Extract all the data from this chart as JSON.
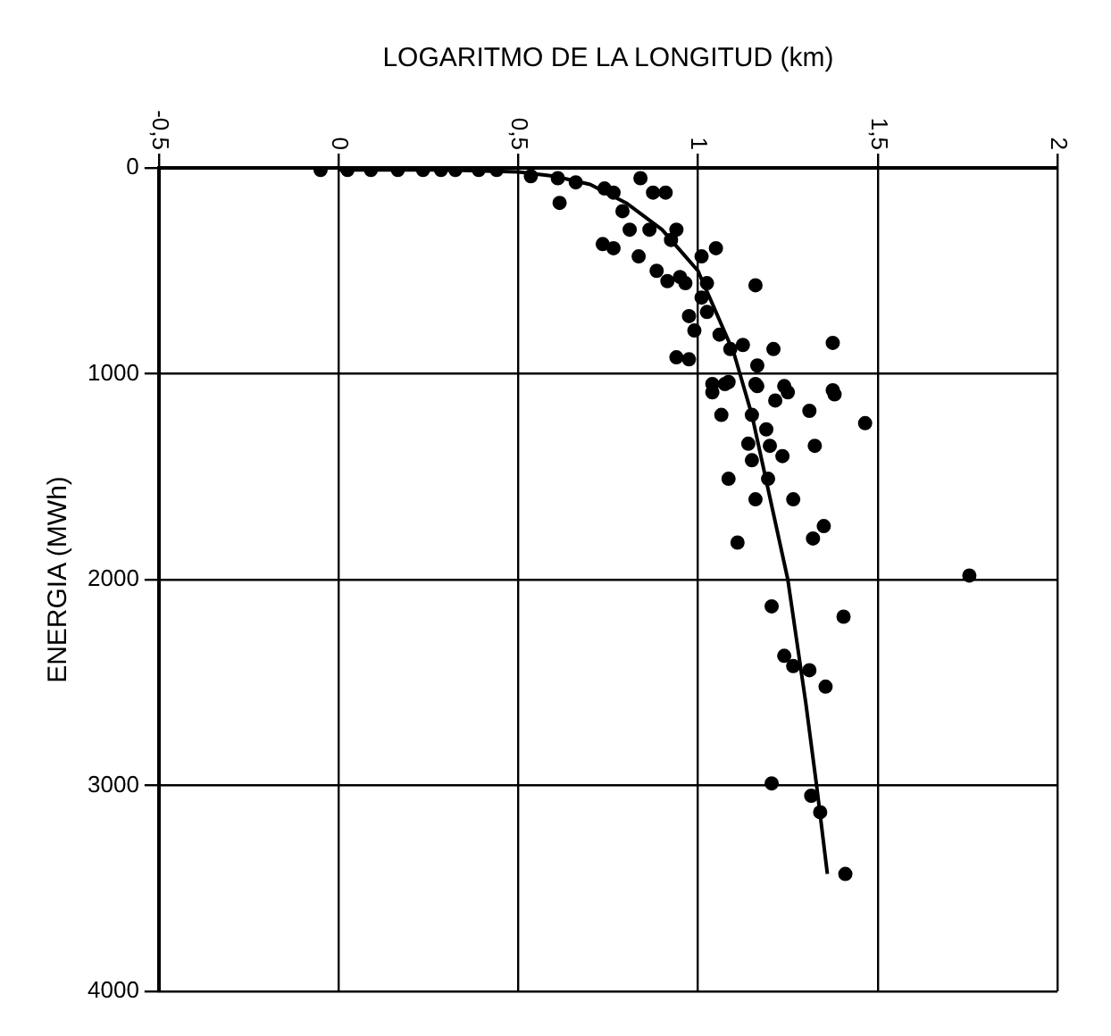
{
  "chart_data": {
    "type": "scatter",
    "xlabel": "LOGARITMO DE LA LONGITUD (km)",
    "ylabel": "ENERGIA (MWh)",
    "xlim": [
      -0.5,
      2
    ],
    "xticks": [
      {
        "value": -0.5,
        "label": "-0,5"
      },
      0,
      {
        "value": 0.5,
        "label": "0,5"
      },
      1,
      {
        "value": 1.5,
        "label": "1,5"
      },
      2
    ],
    "ylim": [
      4000,
      0
    ],
    "yticks": [
      0,
      1000,
      2000,
      3000,
      4000
    ],
    "grid": true,
    "legend": false,
    "marker": "circle",
    "series": [
      {
        "color": "#000000",
        "x": [
          -0.05,
          0.025,
          0.09,
          0.165,
          0.235,
          0.285,
          0.325,
          0.39,
          0.44,
          0.535,
          0.61,
          0.66,
          0.615,
          0.74,
          0.765,
          0.84,
          0.875,
          0.91,
          0.79,
          0.735,
          0.765,
          0.835,
          0.81,
          0.865,
          0.94,
          0.925,
          0.885,
          0.915,
          0.95,
          0.965,
          1.01,
          1.05,
          1.025,
          1.16,
          1.01,
          1.025,
          0.975,
          0.99,
          1.06,
          1.09,
          1.125,
          1.21,
          0.94,
          0.975,
          1.165,
          1.375,
          1.04,
          1.085,
          1.16,
          1.24,
          1.375,
          1.04,
          1.075,
          1.165,
          1.215,
          1.25,
          1.38,
          1.065,
          1.15,
          1.31,
          1.465,
          1.19,
          1.14,
          1.2,
          1.325,
          1.15,
          1.235,
          1.085,
          1.195,
          1.16,
          1.265,
          1.35,
          1.32,
          1.11,
          1.755,
          1.205,
          1.405,
          1.24,
          1.265,
          1.31,
          1.355,
          1.205,
          1.315,
          1.34,
          1.41
        ],
        "values": [
          10,
          10,
          10,
          10,
          10,
          10,
          10,
          10,
          10,
          40,
          50,
          70,
          170,
          100,
          120,
          50,
          120,
          120,
          210,
          370,
          390,
          430,
          300,
          300,
          300,
          350,
          500,
          550,
          530,
          560,
          430,
          390,
          560,
          570,
          630,
          700,
          720,
          790,
          810,
          880,
          860,
          880,
          920,
          930,
          960,
          850,
          1050,
          1040,
          1050,
          1060,
          1080,
          1090,
          1050,
          1060,
          1130,
          1090,
          1100,
          1200,
          1200,
          1180,
          1240,
          1270,
          1340,
          1350,
          1350,
          1420,
          1400,
          1510,
          1510,
          1610,
          1610,
          1740,
          1800,
          1820,
          1980,
          2130,
          2180,
          2370,
          2420,
          2440,
          2520,
          2990,
          3050,
          3130,
          3430
        ]
      },
      {
        "type": "line",
        "color": "#000000",
        "marker": "none",
        "x": [
          0,
          0.3,
          0.5,
          0.6,
          0.7,
          0.8,
          0.9,
          1.0,
          1.05,
          1.1,
          1.15,
          1.2,
          1.25,
          1.3,
          1.33,
          1.36
        ],
        "values": [
          10,
          10,
          20,
          40,
          80,
          170,
          300,
          500,
          700,
          900,
          1200,
          1600,
          2000,
          2600,
          3000,
          3430
        ]
      }
    ]
  }
}
